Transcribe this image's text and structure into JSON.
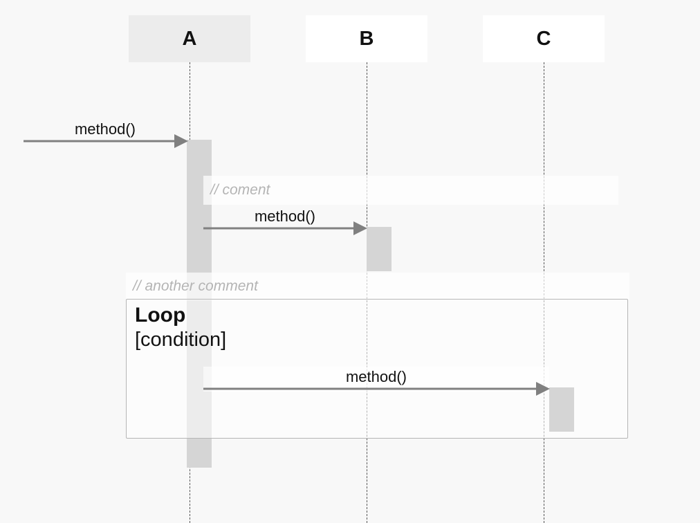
{
  "participants": [
    {
      "id": "A",
      "label": "A"
    },
    {
      "id": "B",
      "label": "B"
    },
    {
      "id": "C",
      "label": "C"
    }
  ],
  "messages": [
    {
      "label": "method()",
      "from": "external",
      "to": "A"
    },
    {
      "label": "method()",
      "from": "A",
      "to": "B"
    },
    {
      "label": "method()",
      "from": "A",
      "to": "C"
    }
  ],
  "comments": [
    {
      "text": "// coment"
    },
    {
      "text": "// another comment"
    }
  ],
  "fragment": {
    "keyword": "Loop",
    "condition": "[condition]"
  },
  "colors": {
    "background": "#f8f8f8",
    "activation": "#d5d5d5",
    "arrow": "#808080",
    "comment_text": "#b4b4b4"
  }
}
